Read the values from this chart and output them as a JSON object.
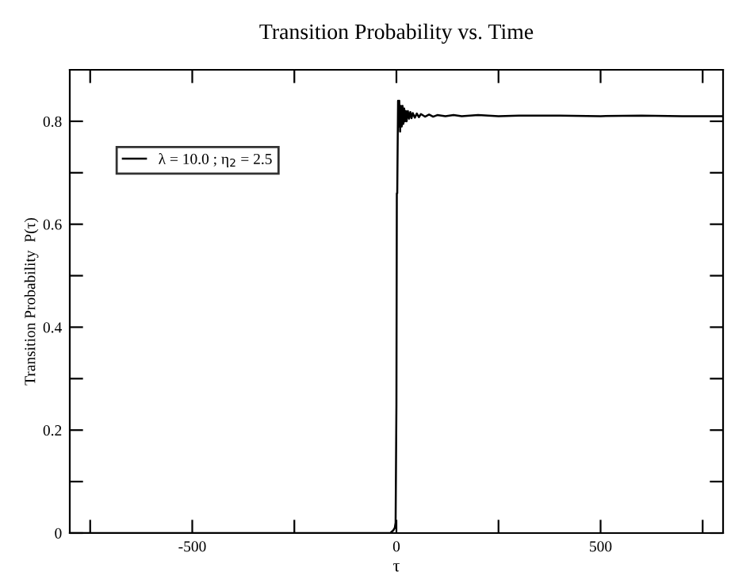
{
  "chart_data": {
    "type": "line",
    "title": "Transition Probability vs. Time",
    "xlabel": "τ",
    "ylabel": "Transition Probability  P(τ)",
    "series": [
      {
        "name": "λ = 10.0 ; η$_{2}$ = 2.5",
        "color": "#000000",
        "x": [
          -800,
          -400,
          -100,
          -30,
          -15,
          -8,
          -4,
          -2,
          0,
          1,
          2,
          3,
          4,
          5,
          7,
          9,
          11,
          13,
          15,
          17,
          19,
          21,
          23,
          25,
          28,
          31,
          34,
          37,
          40,
          45,
          50,
          55,
          60,
          70,
          80,
          90,
          100,
          120,
          140,
          160,
          200,
          250,
          300,
          400,
          500,
          600,
          700,
          800
        ],
        "values": [
          0,
          0,
          0,
          0,
          0,
          0.005,
          0.01,
          0.02,
          0.25,
          0.66,
          0.66,
          0.75,
          0.84,
          0.79,
          0.84,
          0.78,
          0.83,
          0.79,
          0.83,
          0.795,
          0.825,
          0.8,
          0.82,
          0.8,
          0.82,
          0.805,
          0.818,
          0.806,
          0.816,
          0.807,
          0.815,
          0.808,
          0.814,
          0.809,
          0.813,
          0.809,
          0.812,
          0.81,
          0.812,
          0.81,
          0.812,
          0.81,
          0.811,
          0.811,
          0.81,
          0.811,
          0.81,
          0.81
        ]
      }
    ],
    "xlim": [
      -800,
      800
    ],
    "ylim": [
      0,
      0.9
    ],
    "xticks": [
      {
        "value": -750,
        "label": null
      },
      -500,
      {
        "value": -250,
        "label": null
      },
      0,
      {
        "value": 250,
        "label": null
      },
      500,
      {
        "value": 750,
        "label": null
      }
    ],
    "yticks": [
      0,
      {
        "value": 0.1,
        "label": null
      },
      0.2,
      {
        "value": 0.3,
        "label": null
      },
      0.4,
      {
        "value": 0.5,
        "label": null
      },
      0.6,
      {
        "value": 0.7,
        "label": null
      },
      0.8
    ],
    "legend": "top left",
    "grid": false,
    "line_style": "solid",
    "marker": "none"
  }
}
